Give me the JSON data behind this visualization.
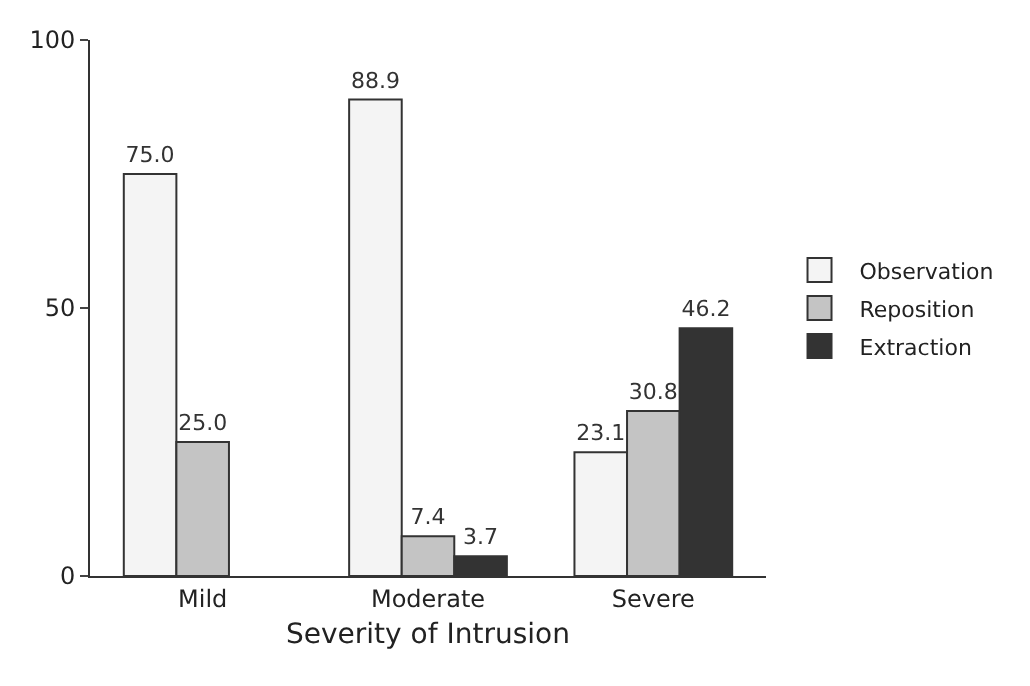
{
  "chart_data": {
    "type": "bar",
    "xlabel": "Severity of Intrusion",
    "categories": [
      "Mild",
      "Moderate",
      "Severe"
    ],
    "series": [
      {
        "name": "Observation",
        "color": "#f4f4f4",
        "values": [
          75.0,
          88.9,
          23.1
        ],
        "value_labels": [
          "75.0",
          "88.9",
          "23.1"
        ]
      },
      {
        "name": "Reposition",
        "color": "#c4c4c4",
        "values": [
          25.0,
          7.4,
          30.8
        ],
        "value_labels": [
          "25.0",
          "7.4",
          "30.8"
        ]
      },
      {
        "name": "Extraction",
        "color": "#333333",
        "values": [
          null,
          3.7,
          46.2
        ],
        "value_labels": [
          null,
          "3.7",
          "46.2"
        ]
      }
    ],
    "ylim": [
      0,
      100
    ],
    "yticks": [
      0,
      50,
      100
    ],
    "grid": false,
    "legend": "right"
  }
}
